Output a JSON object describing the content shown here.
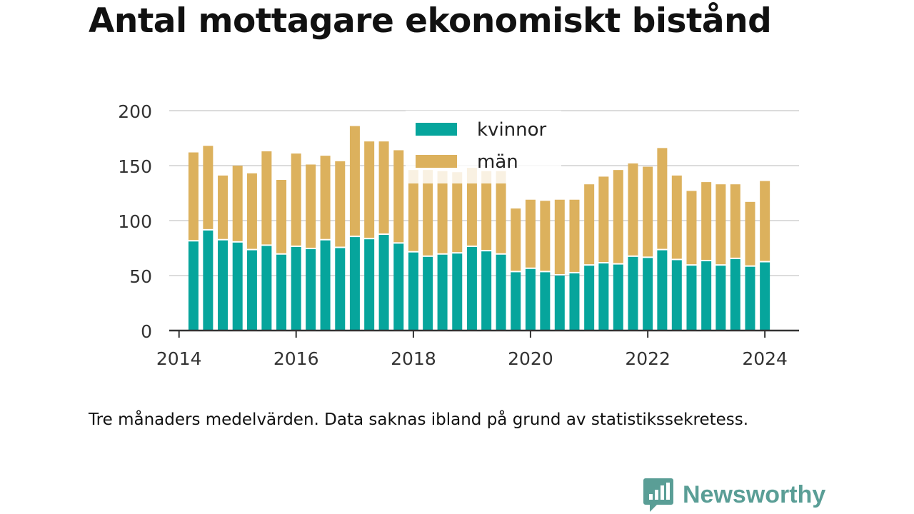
{
  "page": {
    "title": "Antal mottagare ekonomiskt bistånd",
    "caption": "Tre månaders medelvärden. Data saknas ibland på grund av statistikssekretess.",
    "brand": "Newsworthy"
  },
  "chart_data": {
    "type": "bar",
    "stacked": true,
    "x_axis": {
      "type": "date",
      "ticks": [
        "2014",
        "2016",
        "2018",
        "2020",
        "2022",
        "2024"
      ],
      "range": [
        "2013-11-01",
        "2024-08-01"
      ]
    },
    "y_axis": {
      "ticks": [
        0,
        50,
        100,
        150,
        200
      ],
      "ylim": [
        0,
        200
      ],
      "grid": true
    },
    "legend": {
      "position": "top-center"
    },
    "x": [
      "2014-04",
      "2014-07",
      "2014-10",
      "2015-01",
      "2015-04",
      "2015-07",
      "2015-10",
      "2016-01",
      "2016-04",
      "2016-07",
      "2016-10",
      "2017-01",
      "2017-04",
      "2017-07",
      "2017-10",
      "2018-01",
      "2018-04",
      "2018-07",
      "2018-10",
      "2019-01",
      "2019-04",
      "2019-07",
      "2019-10",
      "2020-01",
      "2020-04",
      "2020-07",
      "2020-10",
      "2021-01",
      "2021-04",
      "2021-07",
      "2021-10",
      "2022-01",
      "2022-04",
      "2022-07",
      "2022-10",
      "2023-01",
      "2023-04",
      "2023-07",
      "2023-10",
      "2024-01"
    ],
    "series": [
      {
        "name": "kvinnor",
        "color": "#06a59c",
        "values": [
          81,
          91,
          82,
          80,
          73,
          77,
          69,
          76,
          74,
          82,
          75,
          85,
          83,
          87,
          79,
          71,
          67,
          69,
          70,
          76,
          72,
          69,
          53,
          56,
          53,
          50,
          52,
          59,
          61,
          60,
          67,
          66,
          73,
          64,
          59,
          63,
          59,
          65,
          58,
          62
        ]
      },
      {
        "name": "män",
        "color": "#dcb15d",
        "values": [
          81,
          77,
          59,
          70,
          70,
          86,
          68,
          85,
          77,
          77,
          79,
          101,
          89,
          85,
          85,
          75,
          79,
          76,
          74,
          72,
          73,
          76,
          58,
          63,
          65,
          69,
          67,
          74,
          79,
          86,
          85,
          83,
          93,
          77,
          68,
          72,
          74,
          68,
          59,
          74
        ]
      }
    ]
  }
}
